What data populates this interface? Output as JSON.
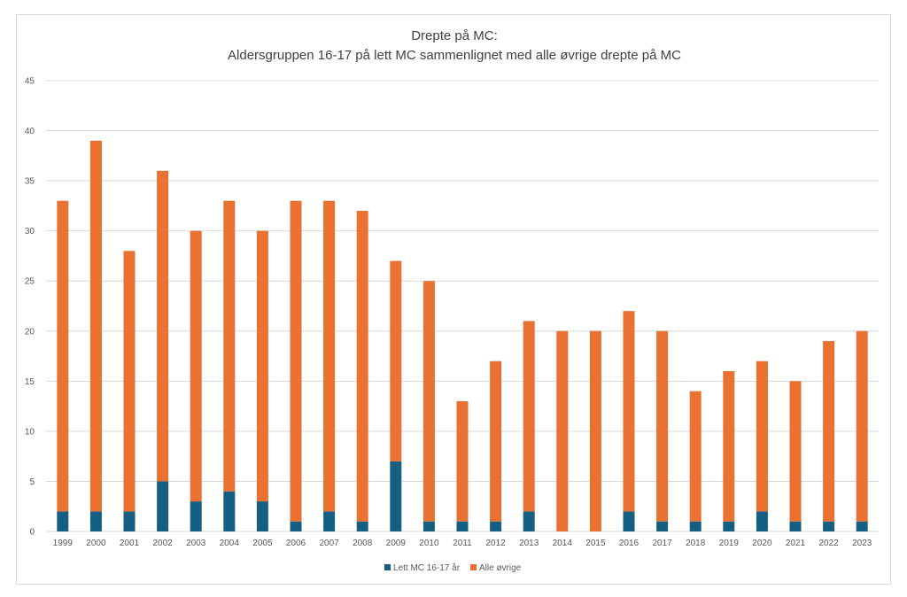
{
  "chart_data": {
    "type": "bar",
    "stacked": true,
    "title": "Drepte på MC:",
    "subtitle": "Aldersgruppen 16-17 på lett MC sammenlignet med alle øvrige drepte på MC",
    "xlabel": "",
    "ylabel": "",
    "ylim": [
      0,
      45
    ],
    "yticks": [
      0,
      5,
      10,
      15,
      20,
      25,
      30,
      35,
      40,
      45
    ],
    "grid": true,
    "legend_position": "bottom",
    "categories": [
      "1999",
      "2000",
      "2001",
      "2002",
      "2003",
      "2004",
      "2005",
      "2006",
      "2007",
      "2008",
      "2009",
      "2010",
      "2011",
      "2012",
      "2013",
      "2014",
      "2015",
      "2016",
      "2017",
      "2018",
      "2019",
      "2020",
      "2021",
      "2022",
      "2023"
    ],
    "series": [
      {
        "name": "Lett MC 16-17 år",
        "color": "#156082",
        "values": [
          2,
          2,
          2,
          5,
          3,
          4,
          3,
          1,
          2,
          1,
          7,
          1,
          1,
          1,
          2,
          0,
          0,
          2,
          1,
          1,
          1,
          2,
          1,
          1,
          1
        ]
      },
      {
        "name": "Alle øvrige",
        "color": "#E97132",
        "values": [
          31,
          37,
          26,
          31,
          27,
          29,
          27,
          32,
          31,
          31,
          20,
          24,
          12,
          16,
          19,
          20,
          20,
          20,
          19,
          13,
          15,
          15,
          14,
          18,
          19
        ]
      }
    ]
  }
}
